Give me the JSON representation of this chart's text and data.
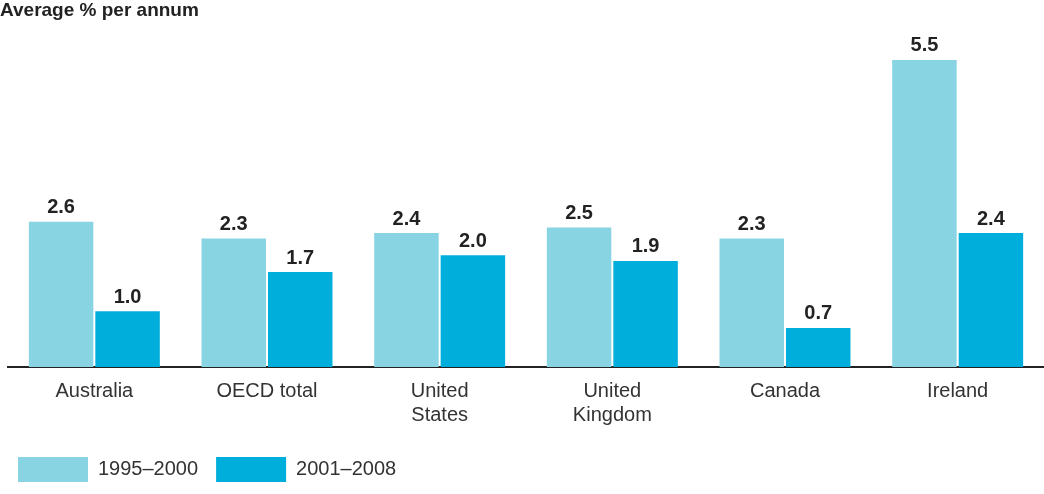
{
  "chart_data": {
    "type": "bar",
    "title": "Average % per annum",
    "categories": [
      "Australia",
      "OECD total",
      "United States",
      "United Kingdom",
      "Canada",
      "Ireland"
    ],
    "series": [
      {
        "name": "1995–2000",
        "color": "#89d4e3",
        "values": [
          2.6,
          2.3,
          2.4,
          2.5,
          2.3,
          5.5
        ],
        "value_labels": [
          "2.6",
          "2.3",
          "2.4",
          "2.5",
          "2.3",
          "5.5"
        ]
      },
      {
        "name": "2001–2008",
        "color": "#00aedb",
        "values": [
          1.0,
          1.7,
          2.0,
          1.9,
          0.7,
          2.4
        ],
        "value_labels": [
          "1.0",
          "1.7",
          "2.0",
          "1.9",
          "0.7",
          "2.4"
        ]
      }
    ],
    "legend": "bottom left",
    "grid": false
  }
}
